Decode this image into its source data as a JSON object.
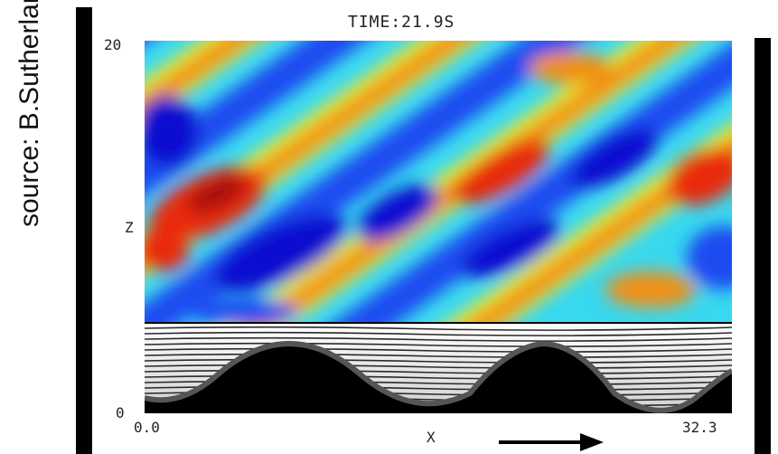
{
  "source": "source: B.Sutherland",
  "time": "TIME:21.9S",
  "axes": {
    "z_label": "Z",
    "z_top": "20",
    "z_bottom": "0",
    "x_label": "X",
    "x_left": "0.0",
    "x_right": "32.3"
  },
  "colors": {
    "deep_blue": "#0a0ad0",
    "blue": "#1a4cf0",
    "cyan": "#38d8f0",
    "yellow": "#f2f030",
    "orange": "#f09018",
    "red": "#e82a10",
    "dark_red": "#a80808",
    "hill": "#000000"
  },
  "arrow": "right-arrow-icon"
}
